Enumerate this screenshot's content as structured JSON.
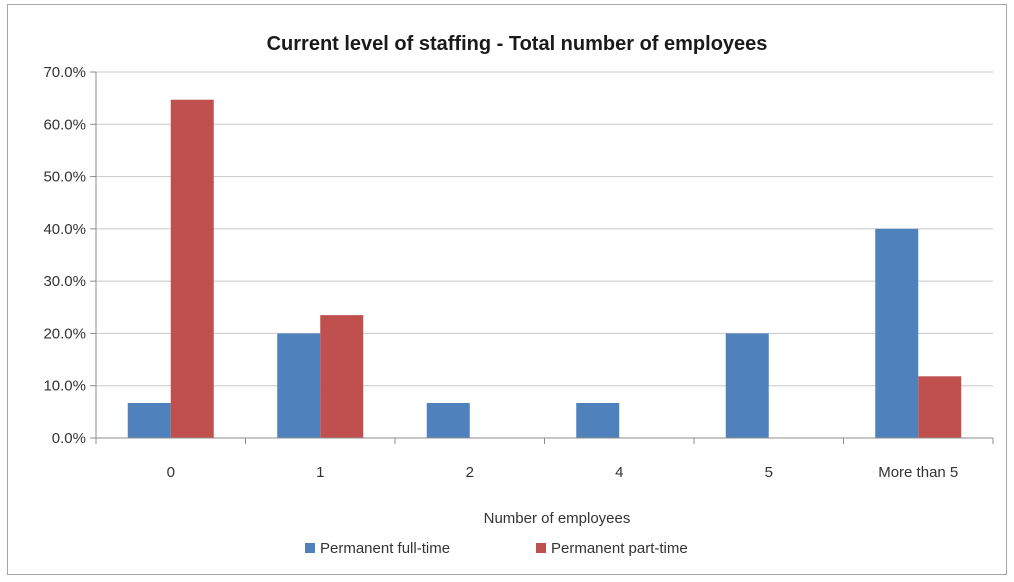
{
  "chart_data": {
    "type": "bar",
    "title": "Current level of staffing - Total number of employees",
    "xlabel": "Number of employees",
    "ylabel": "",
    "categories": [
      "0",
      "1",
      "2",
      "4",
      "5",
      "More than 5"
    ],
    "series": [
      {
        "name": "Permanent full-time",
        "color": "#4f81bd",
        "values": [
          6.7,
          20.0,
          6.7,
          6.7,
          20.0,
          40.0
        ]
      },
      {
        "name": "Permanent part-time",
        "color": "#c0504d",
        "values": [
          64.7,
          23.5,
          0,
          0,
          0,
          11.8
        ]
      }
    ],
    "ylim": [
      0,
      70
    ],
    "yticks": [
      "0.0%",
      "10.0%",
      "20.0%",
      "30.0%",
      "40.0%",
      "50.0%",
      "60.0%",
      "70.0%"
    ],
    "grid": true,
    "legend_position": "bottom"
  }
}
